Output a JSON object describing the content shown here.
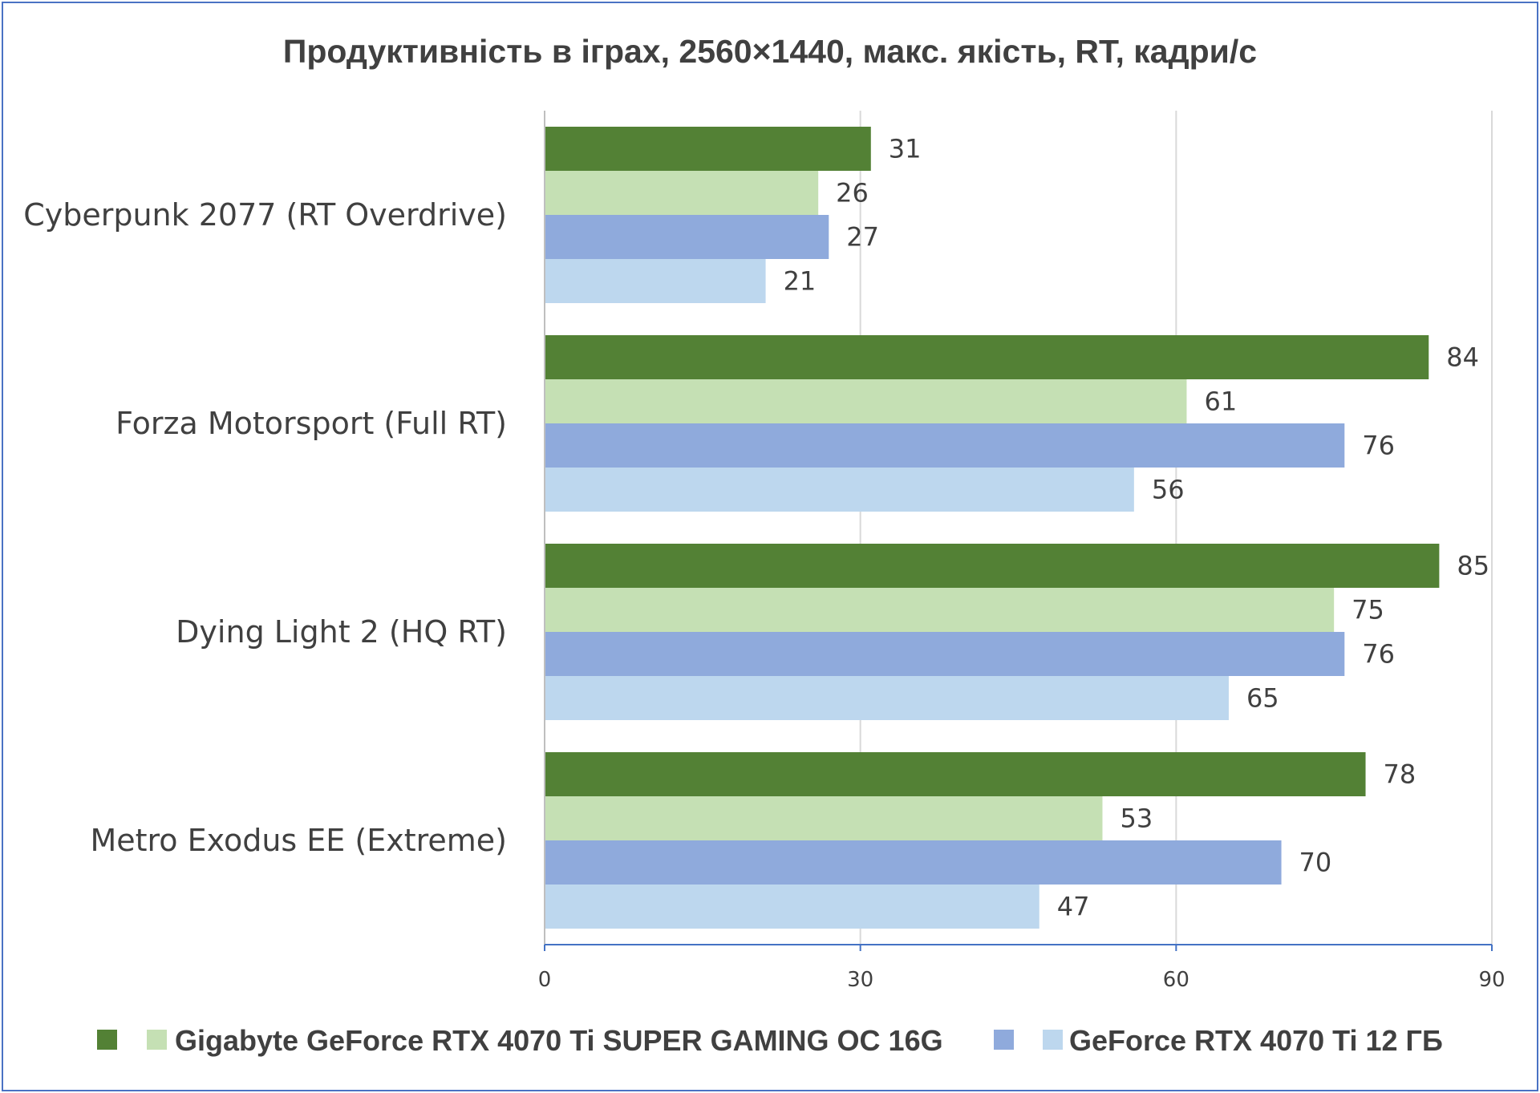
{
  "chart_data": {
    "type": "bar",
    "orientation": "horizontal",
    "title": "Продуктивність в іграх, 2560×1440, макс. якість, RT, кадри/с",
    "categories": [
      "Cyberpunk 2077 (RT Overdrive)",
      "Forza Motorsport (Full RT)",
      "Dying Light 2 (HQ RT)",
      "Metro Exodus EE (Extreme)"
    ],
    "series": [
      {
        "values": [
          31,
          84,
          85,
          78
        ],
        "color": "#538135"
      },
      {
        "name": "Gigabyte GeForce RTX 4070 Ti SUPER GAMING OC 16G",
        "values": [
          26,
          61,
          75,
          53
        ],
        "color": "#c5e0b4"
      },
      {
        "values": [
          27,
          76,
          76,
          70
        ],
        "color": "#8faadc"
      },
      {
        "name": "GeForce RTX 4070 Ti 12 ГБ",
        "values": [
          21,
          56,
          65,
          47
        ],
        "color": "#bdd7ee"
      }
    ],
    "xlim": [
      0,
      90
    ],
    "xticks": [
      0,
      30,
      60,
      90
    ],
    "grid": true,
    "data_labels": true,
    "legend_position": "bottom"
  }
}
